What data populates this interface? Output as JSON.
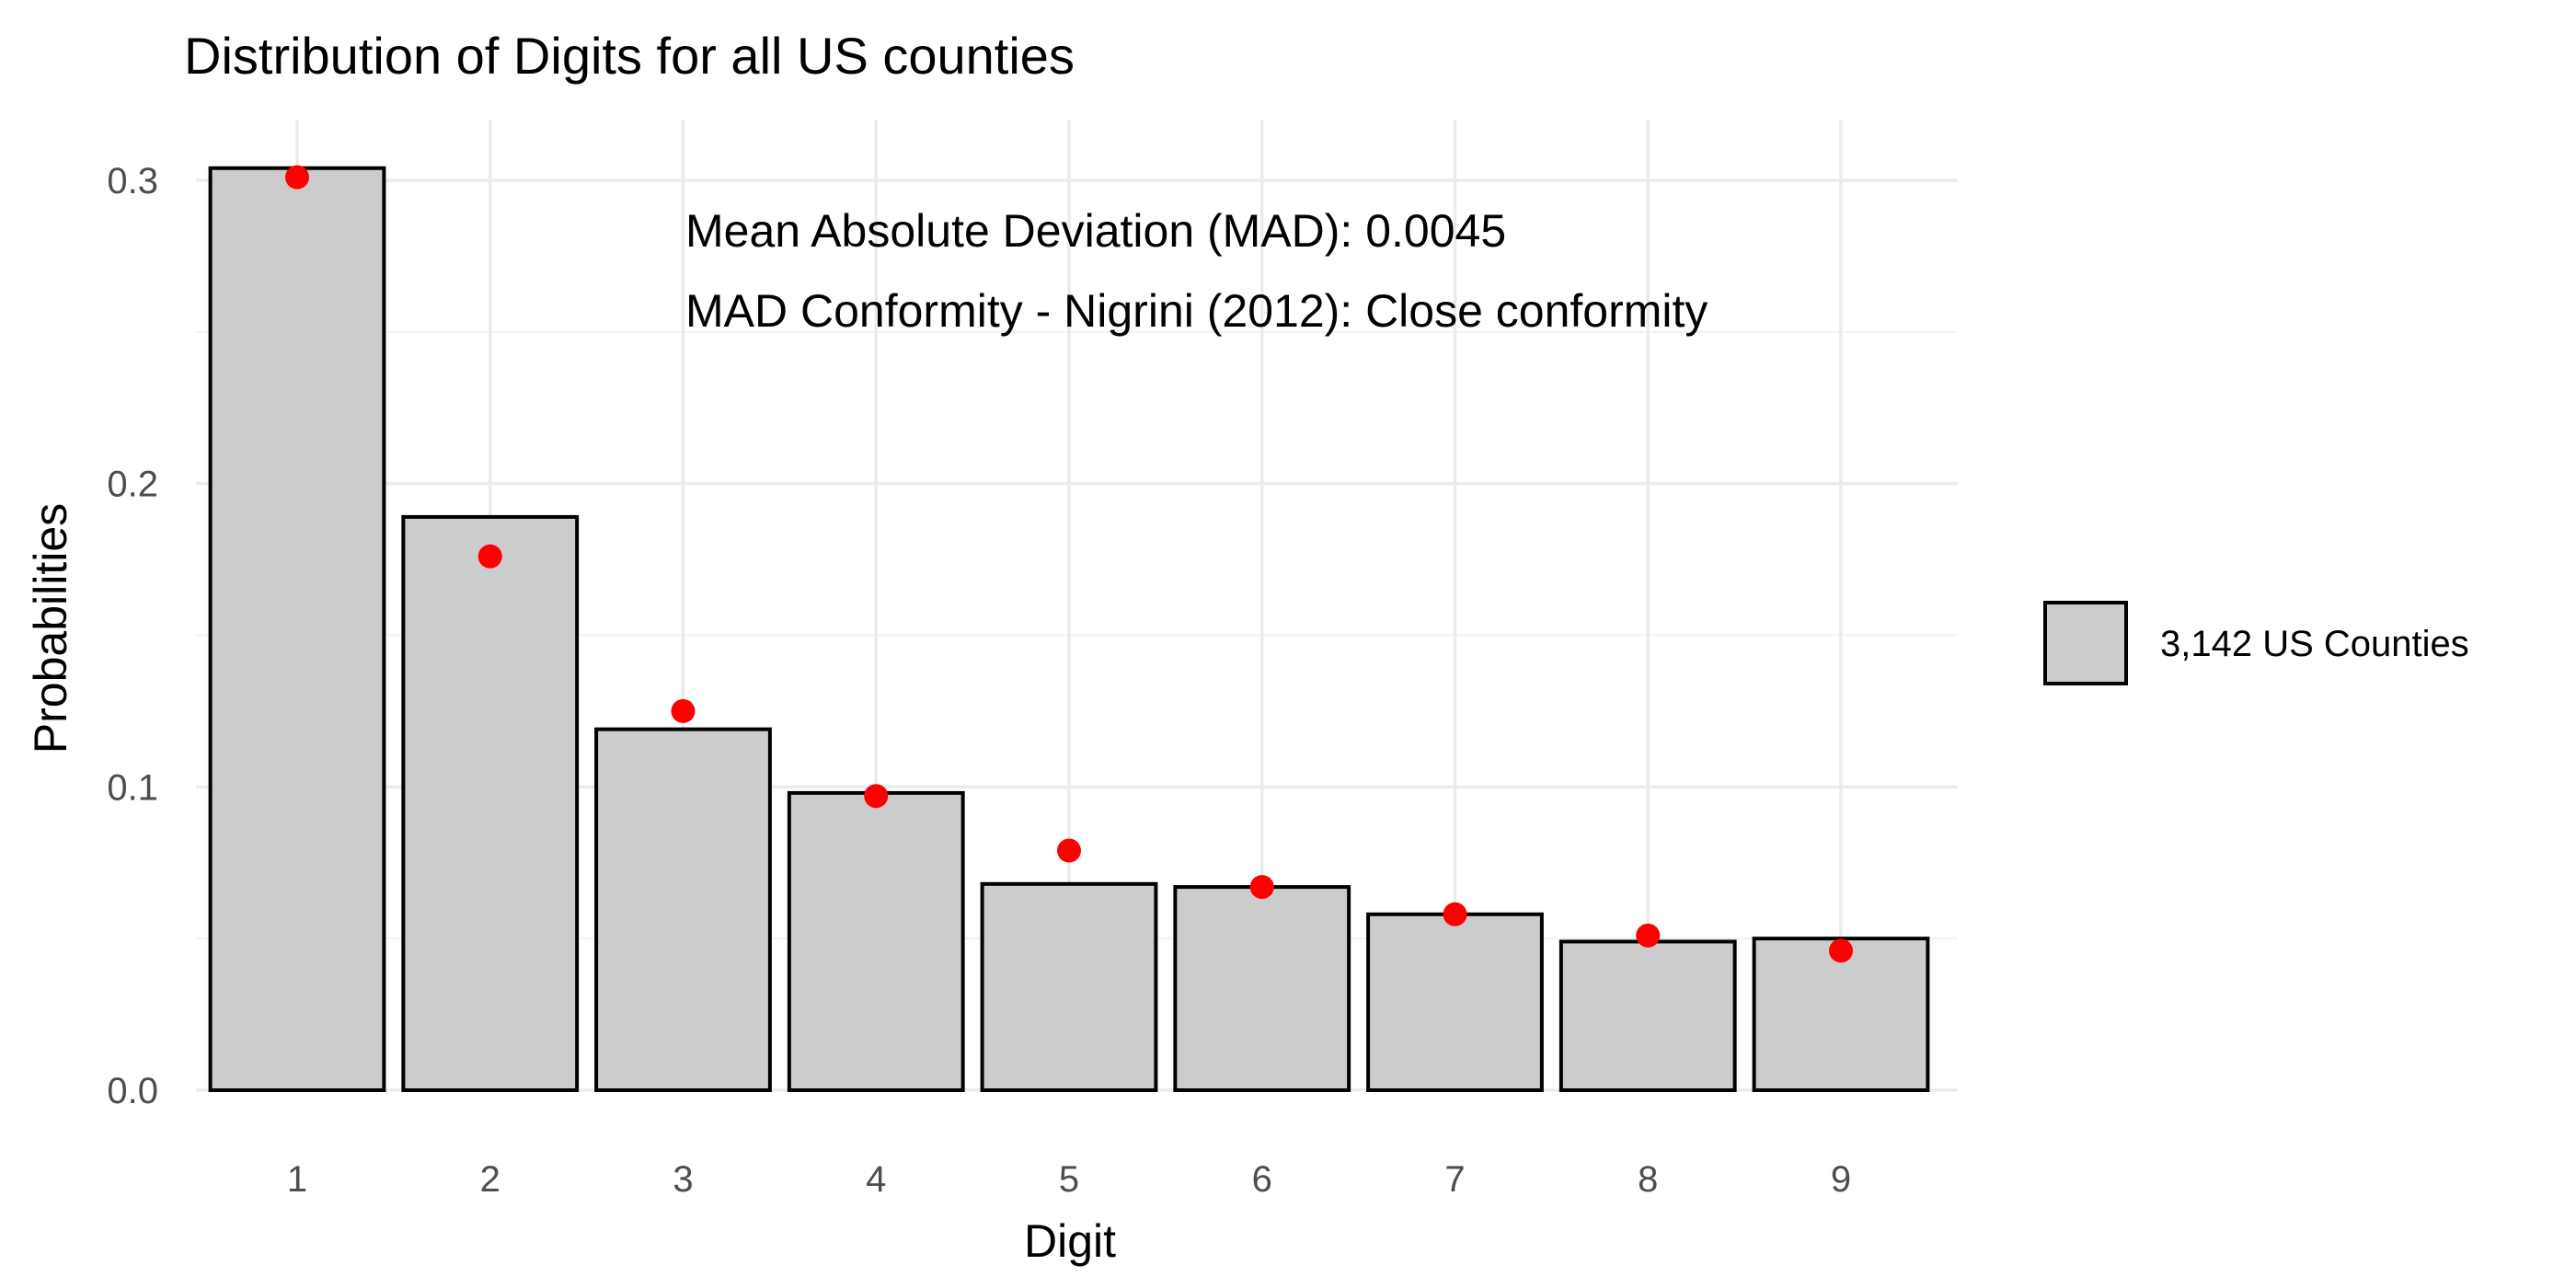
{
  "chart_data": {
    "type": "bar",
    "title": "Distribution of Digits for all US counties",
    "xlabel": "Digit",
    "ylabel": "Probabilities",
    "categories": [
      "1",
      "2",
      "3",
      "4",
      "5",
      "6",
      "7",
      "8",
      "9"
    ],
    "series": [
      {
        "name": "3,142 US Counties",
        "kind": "bar",
        "values": [
          0.304,
          0.189,
          0.119,
          0.098,
          0.068,
          0.067,
          0.058,
          0.049,
          0.05
        ],
        "color": "#cccccc"
      },
      {
        "kind": "point",
        "values": [
          0.301,
          0.176,
          0.125,
          0.097,
          0.079,
          0.067,
          0.058,
          0.051,
          0.046
        ],
        "color": "#ff0000"
      }
    ],
    "ylim": [
      0,
      0.32
    ],
    "yticks": [
      0.0,
      0.1,
      0.2,
      0.3
    ],
    "ytick_labels": [
      "0.0",
      "0.1",
      "0.2",
      "0.3"
    ],
    "grid": true,
    "legend_position": "right",
    "annotations": [
      "Mean Absolute Deviation (MAD): 0.0045",
      "MAD Conformity - Nigrini (2012): Close conformity"
    ]
  }
}
